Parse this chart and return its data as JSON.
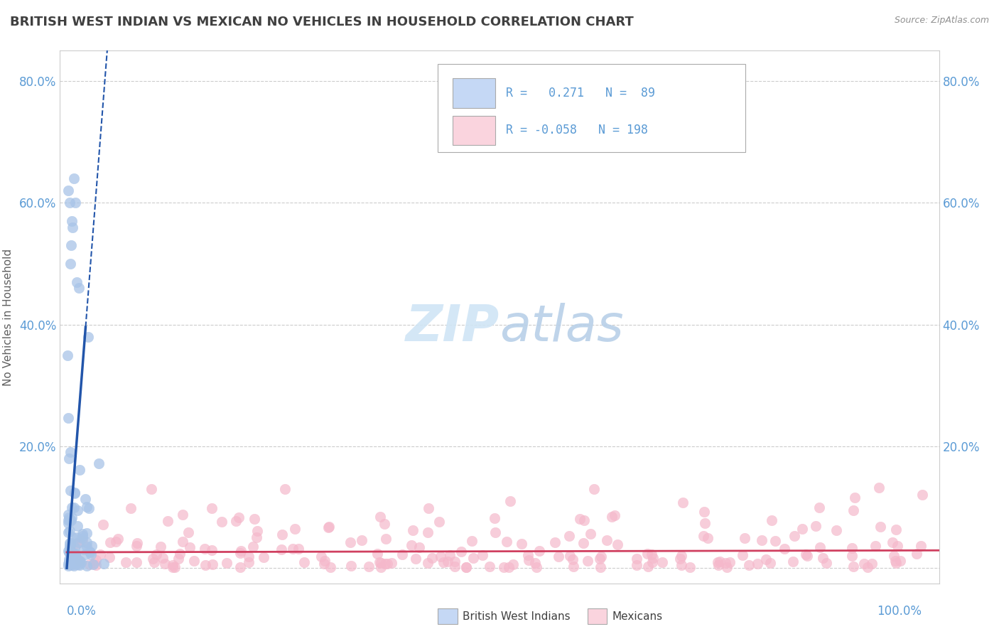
{
  "title": "BRITISH WEST INDIAN VS MEXICAN NO VEHICLES IN HOUSEHOLD CORRELATION CHART",
  "source": "Source: ZipAtlas.com",
  "ylabel": "No Vehicles in Household",
  "r_blue": 0.271,
  "n_blue": 89,
  "r_pink": -0.058,
  "n_pink": 198,
  "blue_scatter_color": "#a8c4e8",
  "pink_scatter_color": "#f5b8cb",
  "blue_line_color": "#2255aa",
  "pink_line_color": "#d04060",
  "blue_fill": "#c5d8f5",
  "pink_fill": "#fad4de",
  "background_color": "#ffffff",
  "grid_color": "#cccccc",
  "axis_label_color": "#5b9bd5",
  "title_color": "#404040",
  "watermark_color": "#d0e5f5",
  "ylim_max": 0.85,
  "xlim_max": 1.02
}
